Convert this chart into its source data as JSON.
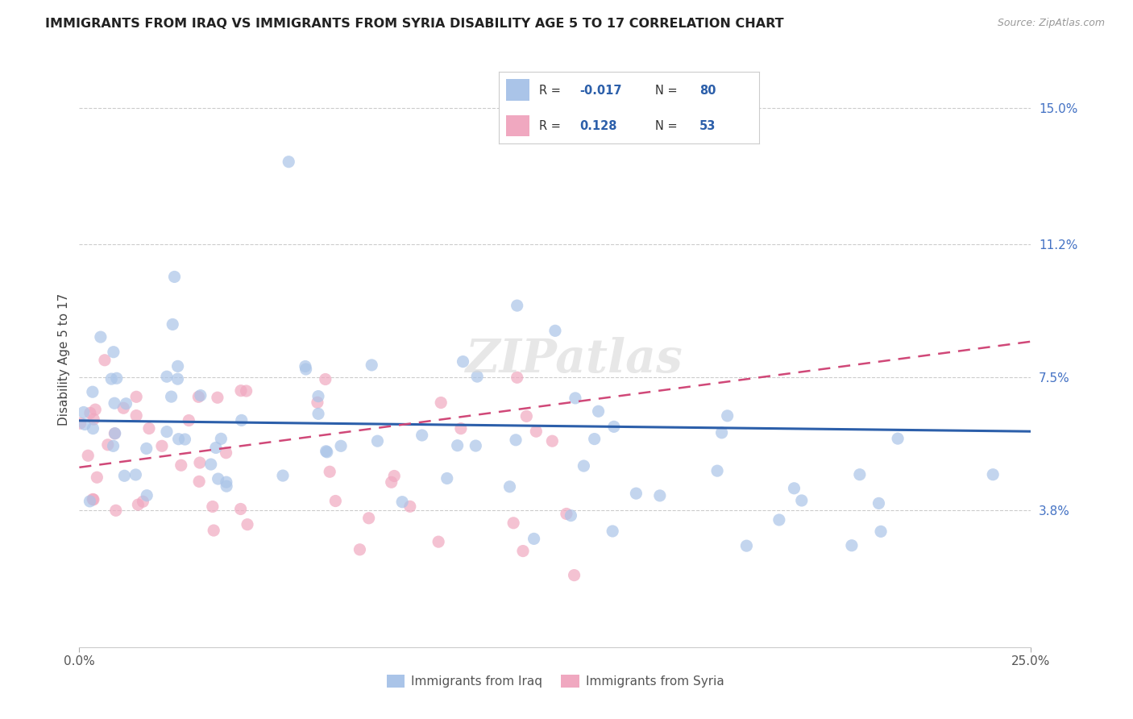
{
  "title": "IMMIGRANTS FROM IRAQ VS IMMIGRANTS FROM SYRIA DISABILITY AGE 5 TO 17 CORRELATION CHART",
  "source": "Source: ZipAtlas.com",
  "ylabel": "Disability Age 5 to 17",
  "xlim": [
    0.0,
    0.25
  ],
  "ylim": [
    0.0,
    0.16
  ],
  "ytick_labels_right": [
    "15.0%",
    "11.2%",
    "7.5%",
    "3.8%"
  ],
  "ytick_vals_right": [
    0.15,
    0.112,
    0.075,
    0.038
  ],
  "r_iraq": -0.017,
  "n_iraq": 80,
  "r_syria": 0.128,
  "n_syria": 53,
  "color_iraq": "#aac4e8",
  "color_syria": "#f0a8c0",
  "color_iraq_line": "#2c5faa",
  "color_syria_line": "#d04878",
  "color_r_value": "#2c5faa",
  "watermark": "ZIPatlas",
  "iraq_line_y0": 0.063,
  "iraq_line_y1": 0.06,
  "syria_line_y0": 0.05,
  "syria_line_y1": 0.085
}
